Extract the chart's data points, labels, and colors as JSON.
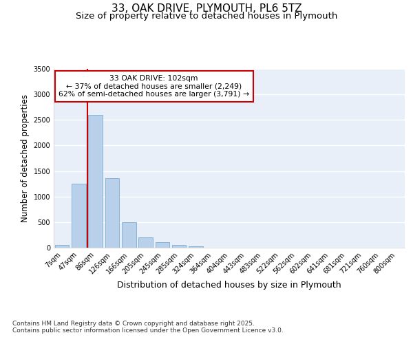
{
  "title_line1": "33, OAK DRIVE, PLYMOUTH, PL6 5TZ",
  "title_line2": "Size of property relative to detached houses in Plymouth",
  "xlabel": "Distribution of detached houses by size in Plymouth",
  "ylabel": "Number of detached properties",
  "categories": [
    "7sqm",
    "47sqm",
    "86sqm",
    "126sqm",
    "166sqm",
    "205sqm",
    "245sqm",
    "285sqm",
    "324sqm",
    "364sqm",
    "404sqm",
    "443sqm",
    "483sqm",
    "522sqm",
    "562sqm",
    "602sqm",
    "641sqm",
    "681sqm",
    "721sqm",
    "760sqm",
    "800sqm"
  ],
  "values": [
    50,
    1250,
    2600,
    1360,
    500,
    200,
    110,
    50,
    30,
    0,
    0,
    0,
    0,
    0,
    0,
    0,
    0,
    0,
    0,
    0,
    0
  ],
  "bar_color": "#b8d0ea",
  "bar_edge_color": "#7aadd4",
  "background_color": "#e8eff8",
  "grid_color": "#ffffff",
  "vline_color": "#cc0000",
  "vline_index": 2,
  "annotation_text": "33 OAK DRIVE: 102sqm\n← 37% of detached houses are smaller (2,249)\n62% of semi-detached houses are larger (3,791) →",
  "annotation_box_color": "#cc0000",
  "ylim": [
    0,
    3500
  ],
  "yticks": [
    0,
    500,
    1000,
    1500,
    2000,
    2500,
    3000,
    3500
  ],
  "footer_text": "Contains HM Land Registry data © Crown copyright and database right 2025.\nContains public sector information licensed under the Open Government Licence v3.0.",
  "title_fontsize": 11,
  "subtitle_fontsize": 9.5,
  "tick_fontsize": 7,
  "ylabel_fontsize": 8.5,
  "xlabel_fontsize": 9,
  "footer_fontsize": 6.5
}
